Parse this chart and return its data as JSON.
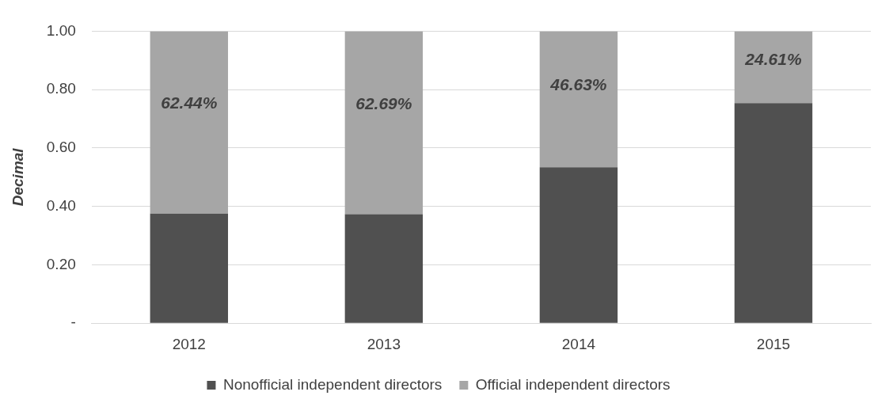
{
  "chart_data": {
    "type": "bar",
    "stacked": true,
    "ylabel": "Decimal",
    "categories": [
      "2012",
      "2013",
      "2014",
      "2015"
    ],
    "series": [
      {
        "name": "Nonofficial independent directors",
        "color": "#505050",
        "values": [
          0.3756,
          0.3731,
          0.5337,
          0.7539
        ]
      },
      {
        "name": "Official independent directors",
        "color": "#a6a6a6",
        "values": [
          0.6244,
          0.6269,
          0.4663,
          0.2461
        ],
        "value_labels": [
          "62.44%",
          "62.69%",
          "46.63%",
          "24.61%"
        ]
      }
    ],
    "ylim": [
      0,
      1
    ],
    "yticks": [
      {
        "value": 0,
        "label": "-"
      },
      {
        "value": 0.2,
        "label": "0.20"
      },
      {
        "value": 0.4,
        "label": "0.40"
      },
      {
        "value": 0.6,
        "label": "0.60"
      },
      {
        "value": 0.8,
        "label": "0.80"
      },
      {
        "value": 1,
        "label": "1.00"
      }
    ],
    "grid": "y",
    "legend": "bottom"
  }
}
